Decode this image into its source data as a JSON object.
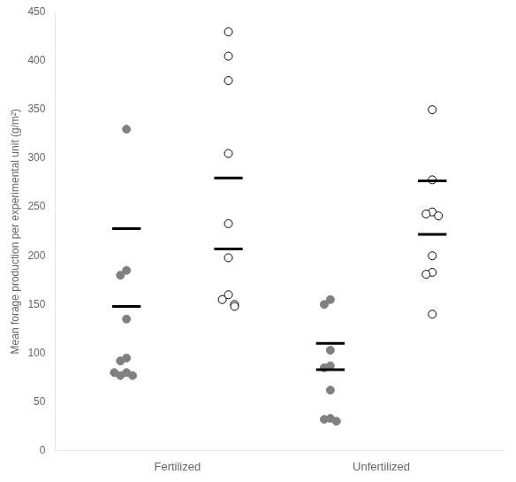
{
  "chart_data": {
    "type": "strip",
    "ylabel": "Mean forage production per experimental unit (g/m²)",
    "categories": [
      "Fertilized",
      "Unfertilized"
    ],
    "series": [
      {
        "color": "#808080",
        "marker": "circle",
        "values": [
          [
            330,
            185,
            180,
            135,
            95,
            92,
            80,
            77,
            77,
            80
          ],
          [
            155,
            150,
            103,
            87,
            85,
            62,
            33,
            32,
            30
          ]
        ],
        "means": [
          [
            148,
            228
          ],
          [
            83,
            110
          ]
        ]
      },
      {
        "color": "#000000",
        "marker": "circle_open",
        "values": [
          [
            430,
            405,
            380,
            305,
            233,
            198,
            160,
            155,
            150,
            148
          ],
          [
            350,
            278,
            245,
            243,
            241,
            200,
            183,
            181,
            140
          ]
        ],
        "means": [
          [
            207,
            280
          ],
          [
            222,
            277
          ]
        ]
      }
    ],
    "ylim": [
      0,
      450
    ],
    "yticks": [
      0,
      50,
      100,
      150,
      200,
      250,
      300,
      350,
      400,
      450
    ],
    "grid": false
  }
}
